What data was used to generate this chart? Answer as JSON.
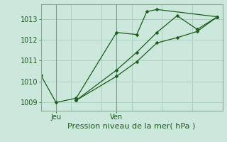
{
  "title": "",
  "xlabel": "Pression niveau de la mer( hPa )",
  "bg_color": "#cce8dc",
  "line_color": "#1a5c1a",
  "grid_color": "#aad0c0",
  "ylim": [
    1008.6,
    1013.7
  ],
  "xlim": [
    0,
    18
  ],
  "xtick_labels": [
    "Jeu",
    "Ven"
  ],
  "xtick_pos": [
    1.5,
    7.5
  ],
  "ytick_vals": [
    1009,
    1010,
    1011,
    1012,
    1013
  ],
  "vline_pos": [
    1.5,
    7.5
  ],
  "line1_x": [
    0,
    1.5,
    3.5,
    7.5,
    9.5,
    10.5,
    11.5,
    17.5
  ],
  "line1_y": [
    1010.3,
    1009.0,
    1009.2,
    1012.35,
    1012.25,
    1013.35,
    1013.45,
    1013.1
  ],
  "line2_x": [
    3.5,
    7.5,
    9.5,
    11.5,
    13.5,
    15.5,
    17.5
  ],
  "line2_y": [
    1009.1,
    1010.55,
    1011.4,
    1012.35,
    1013.15,
    1012.5,
    1013.1
  ],
  "line3_x": [
    3.5,
    7.5,
    9.5,
    11.5,
    13.5,
    15.5,
    17.5
  ],
  "line3_y": [
    1009.1,
    1010.25,
    1010.95,
    1011.85,
    1012.1,
    1012.4,
    1013.1
  ],
  "xlabel_fontsize": 8,
  "tick_fontsize": 7
}
